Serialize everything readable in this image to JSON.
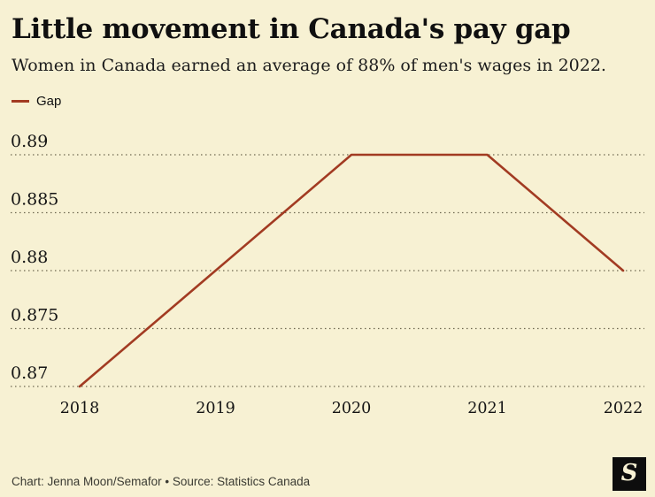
{
  "header": {
    "title": "Little movement in Canada's pay gap",
    "subtitle": "Women in Canada earned an average of 88% of men's wages in 2022."
  },
  "legend": {
    "items": [
      {
        "label": "Gap",
        "color": "#a23b22"
      }
    ]
  },
  "chart_data": {
    "type": "line",
    "title": "Little movement in Canada's pay gap",
    "subtitle": "Women in Canada earned an average of 88% of men's wages in 2022.",
    "x": [
      "2018",
      "2019",
      "2020",
      "2021",
      "2022"
    ],
    "series": [
      {
        "name": "Gap",
        "values": [
          0.87,
          0.88,
          0.89,
          0.89,
          0.88
        ],
        "color": "#a23b22"
      }
    ],
    "yticks": [
      0.87,
      0.875,
      0.88,
      0.885,
      0.89
    ],
    "ytick_labels": [
      "0.87",
      "0.875",
      "0.88",
      "0.885",
      "0.89"
    ],
    "ylim": [
      0.87,
      0.89
    ],
    "xlabel": "",
    "ylabel": "",
    "grid": "horizontal-dotted",
    "legend_position": "top-left"
  },
  "footer": {
    "credit": "Chart: Jenna Moon/Semafor • Source: Statistics Canada",
    "logo_glyph": "S"
  },
  "colors": {
    "background": "#f7f1d3",
    "line": "#a23b22",
    "text": "#141414",
    "grid": "#58523b"
  }
}
